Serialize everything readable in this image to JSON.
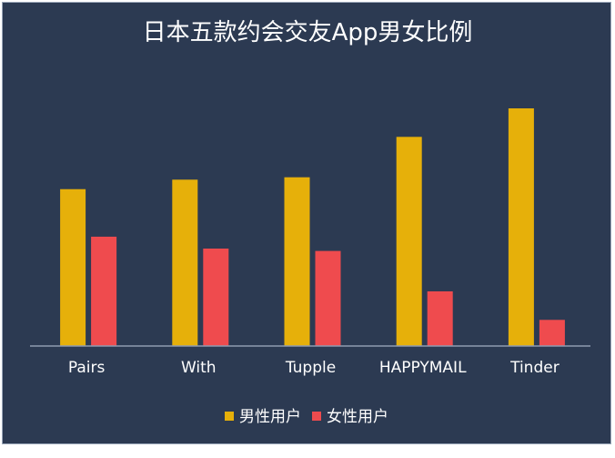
{
  "chart_data": {
    "type": "bar",
    "title": "日本五款约会交友App男女比例",
    "categories": [
      "Pairs",
      "With",
      "Tupple",
      "HAPPYMAIL",
      "Tinder"
    ],
    "series": [
      {
        "name": "男性用户",
        "color": "#e6b00a",
        "values": [
          0.66,
          0.7,
          0.71,
          0.88,
          1.0
        ]
      },
      {
        "name": "女性用户",
        "color": "#ef4b4e",
        "values": [
          0.46,
          0.41,
          0.4,
          0.23,
          0.11
        ]
      }
    ],
    "ylim": [
      0,
      1.0
    ],
    "grid": false,
    "legend_position": "bottom-center",
    "axis_color": "#8f9bb0",
    "background": "#2c3a52"
  }
}
